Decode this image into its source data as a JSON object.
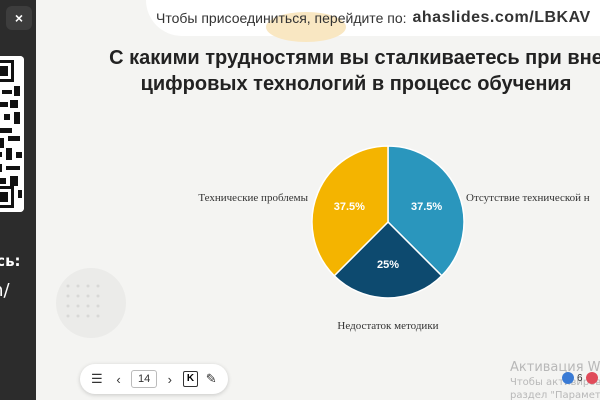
{
  "close_label": "×",
  "side": {
    "line1": "есь:",
    "line2": "m/"
  },
  "banner": {
    "join_text": "Чтобы присоединиться, перейдите по:",
    "join_code": "ahaslides.com/LBKAV"
  },
  "title": {
    "line1": "С какими трудностями вы сталкиваетесь при вне",
    "line2": "цифровых технологий в процесс обучения"
  },
  "colors": {
    "slice_orange": "#f4b400",
    "slice_blue": "#2a96bd",
    "slice_navy": "#0d4a6f",
    "panel_dark": "#2c2c2c"
  },
  "chart_data": {
    "type": "pie",
    "slices": [
      {
        "label": "Отсутствие технической н",
        "value": 37.5,
        "display": "37.5%",
        "color": "#2a96bd"
      },
      {
        "label": "Недостаток методики",
        "value": 25,
        "display": "25%",
        "color": "#0d4a6f"
      },
      {
        "label": "Технические проблемы",
        "value": 37.5,
        "display": "37.5%",
        "color": "#f4b400"
      }
    ]
  },
  "toolbar": {
    "menu_icon": "☰",
    "prev_icon": "‹",
    "page": "14",
    "k_label": "K",
    "effects_icon": "✎"
  },
  "watermark": {
    "title": "Активация Win",
    "sub": "Чтобы активирова",
    "sub2": "раздел \"Параметры\""
  },
  "reactions": {
    "count": "6"
  }
}
